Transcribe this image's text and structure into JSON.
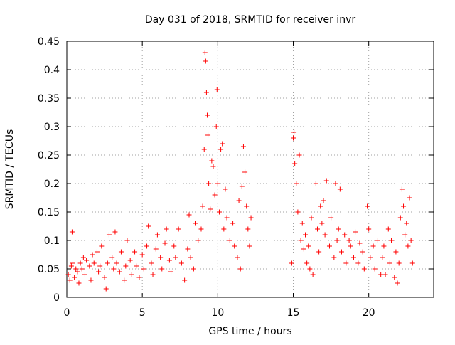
{
  "chart_data": {
    "type": "scatter",
    "title": "Day 031 of 2018, SRMTID for receiver invr",
    "xlabel": "GPS time / hours",
    "ylabel": "SRMTID / TECUs",
    "xlim": [
      0,
      24.3
    ],
    "ylim": [
      0,
      0.45
    ],
    "x_ticks": [
      0,
      5,
      10,
      15,
      20
    ],
    "x_tick_labels": [
      "0",
      "5",
      "10",
      "15",
      "20"
    ],
    "y_ticks": [
      0,
      0.05,
      0.1,
      0.15,
      0.2,
      0.25,
      0.3,
      0.35,
      0.4,
      0.45
    ],
    "y_tick_labels": [
      "0",
      "0.05",
      "0.1",
      "0.15",
      "0.2",
      "0.25",
      "0.3",
      "0.35",
      "0.4",
      "0.45"
    ],
    "grid": true,
    "marker": "plus",
    "series": [
      {
        "name": "SRMTID",
        "color": "#ff0000",
        "points": [
          [
            0.1,
            0.04
          ],
          [
            0.2,
            0.03
          ],
          [
            0.3,
            0.055
          ],
          [
            0.35,
            0.115
          ],
          [
            0.4,
            0.06
          ],
          [
            0.5,
            0.035
          ],
          [
            0.6,
            0.05
          ],
          [
            0.7,
            0.045
          ],
          [
            0.8,
            0.025
          ],
          [
            0.9,
            0.06
          ],
          [
            1.0,
            0.05
          ],
          [
            1.1,
            0.07
          ],
          [
            1.2,
            0.04
          ],
          [
            1.3,
            0.065
          ],
          [
            1.5,
            0.055
          ],
          [
            1.6,
            0.03
          ],
          [
            1.7,
            0.075
          ],
          [
            1.8,
            0.06
          ],
          [
            2.0,
            0.08
          ],
          [
            2.1,
            0.045
          ],
          [
            2.2,
            0.055
          ],
          [
            2.3,
            0.09
          ],
          [
            2.5,
            0.035
          ],
          [
            2.6,
            0.015
          ],
          [
            2.7,
            0.06
          ],
          [
            2.8,
            0.11
          ],
          [
            3.0,
            0.07
          ],
          [
            3.1,
            0.05
          ],
          [
            3.2,
            0.115
          ],
          [
            3.3,
            0.06
          ],
          [
            3.5,
            0.045
          ],
          [
            3.6,
            0.08
          ],
          [
            3.8,
            0.03
          ],
          [
            3.9,
            0.055
          ],
          [
            4.0,
            0.1
          ],
          [
            4.2,
            0.065
          ],
          [
            4.3,
            0.04
          ],
          [
            4.5,
            0.08
          ],
          [
            4.6,
            0.055
          ],
          [
            4.8,
            0.035
          ],
          [
            5.0,
            0.075
          ],
          [
            5.1,
            0.05
          ],
          [
            5.3,
            0.09
          ],
          [
            5.4,
            0.125
          ],
          [
            5.6,
            0.06
          ],
          [
            5.7,
            0.04
          ],
          [
            5.9,
            0.085
          ],
          [
            6.0,
            0.11
          ],
          [
            6.2,
            0.07
          ],
          [
            6.3,
            0.05
          ],
          [
            6.5,
            0.095
          ],
          [
            6.6,
            0.12
          ],
          [
            6.8,
            0.065
          ],
          [
            6.9,
            0.045
          ],
          [
            7.1,
            0.09
          ],
          [
            7.2,
            0.07
          ],
          [
            7.4,
            0.12
          ],
          [
            7.6,
            0.06
          ],
          [
            7.8,
            0.03
          ],
          [
            8.0,
            0.085
          ],
          [
            8.1,
            0.145
          ],
          [
            8.2,
            0.07
          ],
          [
            8.4,
            0.05
          ],
          [
            8.5,
            0.13
          ],
          [
            8.7,
            0.1
          ],
          [
            8.9,
            0.12
          ],
          [
            9.0,
            0.16
          ],
          [
            9.1,
            0.26
          ],
          [
            9.15,
            0.43
          ],
          [
            9.2,
            0.415
          ],
          [
            9.25,
            0.36
          ],
          [
            9.3,
            0.32
          ],
          [
            9.35,
            0.285
          ],
          [
            9.4,
            0.2
          ],
          [
            9.5,
            0.155
          ],
          [
            9.6,
            0.24
          ],
          [
            9.7,
            0.23
          ],
          [
            9.8,
            0.18
          ],
          [
            9.9,
            0.3
          ],
          [
            9.95,
            0.365
          ],
          [
            10.0,
            0.2
          ],
          [
            10.1,
            0.15
          ],
          [
            10.2,
            0.26
          ],
          [
            10.3,
            0.27
          ],
          [
            10.4,
            0.12
          ],
          [
            10.5,
            0.19
          ],
          [
            10.6,
            0.14
          ],
          [
            10.8,
            0.1
          ],
          [
            11.0,
            0.13
          ],
          [
            11.1,
            0.09
          ],
          [
            11.3,
            0.07
          ],
          [
            11.4,
            0.17
          ],
          [
            11.5,
            0.05
          ],
          [
            11.6,
            0.195
          ],
          [
            11.7,
            0.265
          ],
          [
            11.8,
            0.22
          ],
          [
            11.9,
            0.16
          ],
          [
            12.0,
            0.12
          ],
          [
            12.1,
            0.09
          ],
          [
            12.2,
            0.14
          ],
          [
            14.9,
            0.06
          ],
          [
            15.0,
            0.28
          ],
          [
            15.05,
            0.29
          ],
          [
            15.1,
            0.235
          ],
          [
            15.2,
            0.2
          ],
          [
            15.3,
            0.15
          ],
          [
            15.4,
            0.25
          ],
          [
            15.5,
            0.1
          ],
          [
            15.6,
            0.13
          ],
          [
            15.7,
            0.085
          ],
          [
            15.8,
            0.11
          ],
          [
            15.9,
            0.06
          ],
          [
            16.0,
            0.09
          ],
          [
            16.1,
            0.05
          ],
          [
            16.2,
            0.14
          ],
          [
            16.3,
            0.04
          ],
          [
            16.5,
            0.2
          ],
          [
            16.6,
            0.12
          ],
          [
            16.7,
            0.08
          ],
          [
            16.8,
            0.16
          ],
          [
            16.9,
            0.13
          ],
          [
            17.0,
            0.17
          ],
          [
            17.1,
            0.11
          ],
          [
            17.2,
            0.205
          ],
          [
            17.4,
            0.09
          ],
          [
            17.5,
            0.14
          ],
          [
            17.7,
            0.07
          ],
          [
            17.8,
            0.2
          ],
          [
            17.9,
            0.1
          ],
          [
            18.0,
            0.12
          ],
          [
            18.1,
            0.19
          ],
          [
            18.2,
            0.08
          ],
          [
            18.4,
            0.11
          ],
          [
            18.5,
            0.06
          ],
          [
            18.7,
            0.1
          ],
          [
            18.8,
            0.09
          ],
          [
            19.0,
            0.07
          ],
          [
            19.1,
            0.115
          ],
          [
            19.3,
            0.06
          ],
          [
            19.4,
            0.095
          ],
          [
            19.6,
            0.08
          ],
          [
            19.7,
            0.05
          ],
          [
            19.9,
            0.16
          ],
          [
            20.0,
            0.12
          ],
          [
            20.1,
            0.07
          ],
          [
            20.3,
            0.09
          ],
          [
            20.4,
            0.05
          ],
          [
            20.6,
            0.1
          ],
          [
            20.8,
            0.04
          ],
          [
            20.9,
            0.07
          ],
          [
            21.0,
            0.09
          ],
          [
            21.1,
            0.04
          ],
          [
            21.3,
            0.12
          ],
          [
            21.4,
            0.06
          ],
          [
            21.5,
            0.1
          ],
          [
            21.7,
            0.035
          ],
          [
            21.8,
            0.08
          ],
          [
            21.9,
            0.025
          ],
          [
            22.0,
            0.06
          ],
          [
            22.1,
            0.14
          ],
          [
            22.2,
            0.19
          ],
          [
            22.3,
            0.16
          ],
          [
            22.4,
            0.11
          ],
          [
            22.5,
            0.13
          ],
          [
            22.6,
            0.09
          ],
          [
            22.7,
            0.175
          ],
          [
            22.8,
            0.1
          ],
          [
            22.9,
            0.06
          ]
        ]
      }
    ]
  }
}
